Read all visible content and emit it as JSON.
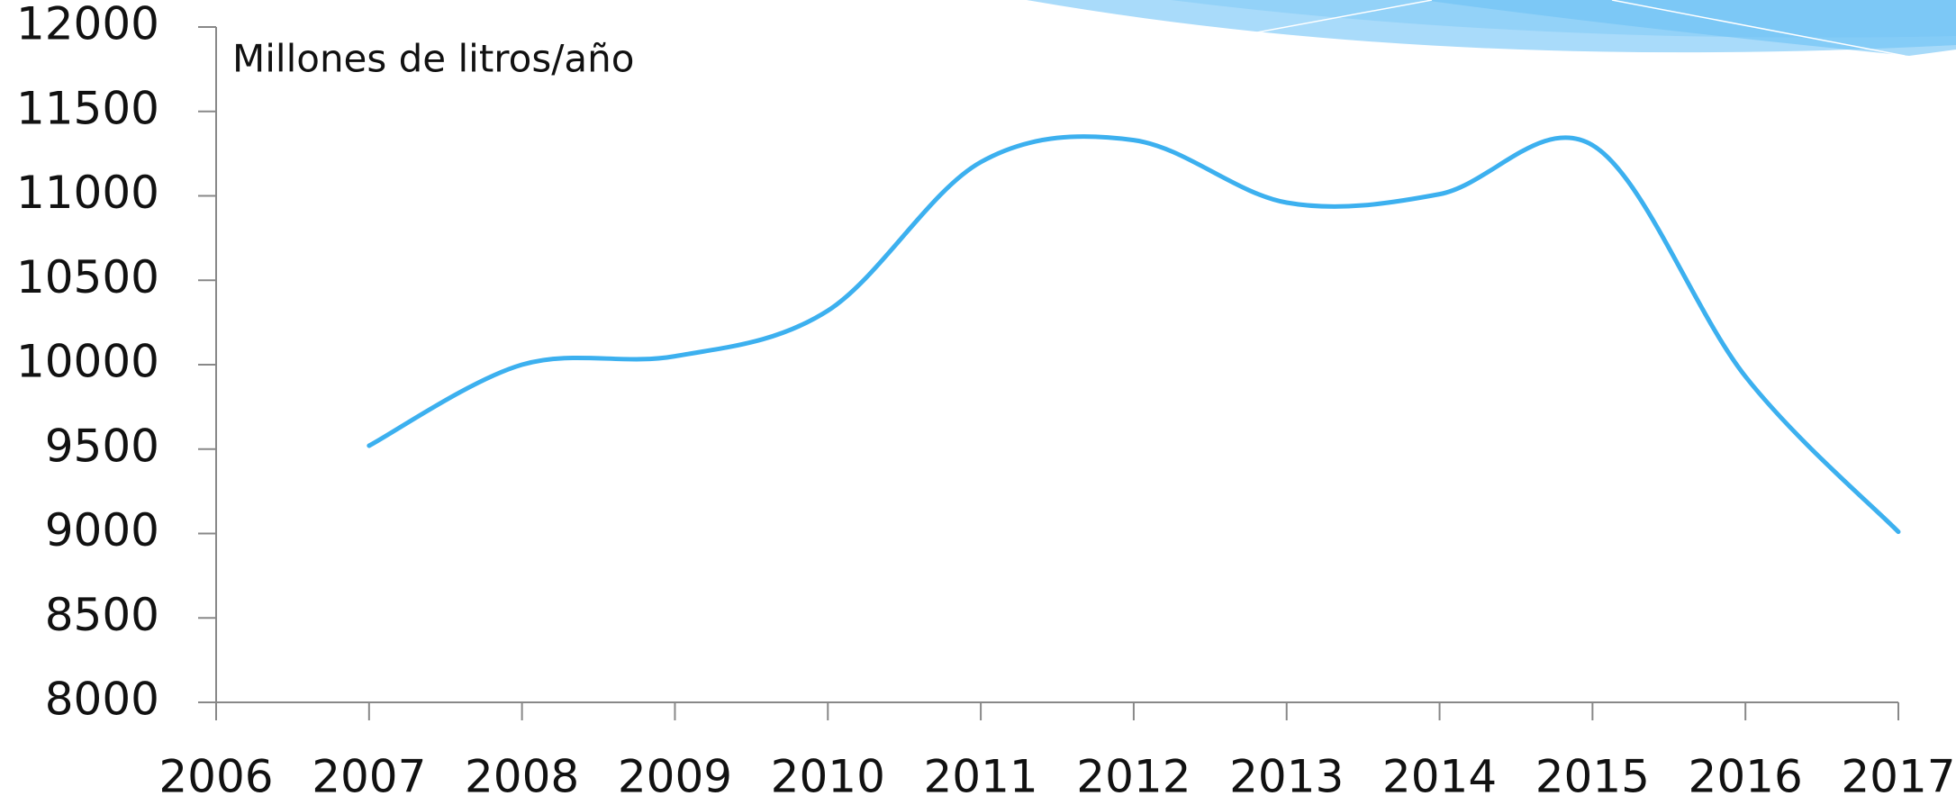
{
  "chart_data": {
    "type": "line",
    "annotation": "Millones de  litros/año",
    "x": [
      2007,
      2008,
      2009,
      2010,
      2011,
      2012,
      2013,
      2014,
      2015,
      2016,
      2017
    ],
    "values": [
      9520,
      10000,
      10050,
      10320,
      11200,
      11330,
      10960,
      11010,
      11300,
      9930,
      9010
    ],
    "color": "#3cb0ef",
    "xlim": [
      2006,
      2017
    ],
    "xticks": [
      2006,
      2007,
      2008,
      2009,
      2010,
      2011,
      2012,
      2013,
      2014,
      2015,
      2016,
      2017
    ],
    "ylim": [
      8000,
      12000
    ],
    "yticks": [
      8000,
      8500,
      9000,
      9500,
      10000,
      10500,
      11000,
      11500,
      12000
    ],
    "grid": false,
    "smooth": true
  }
}
